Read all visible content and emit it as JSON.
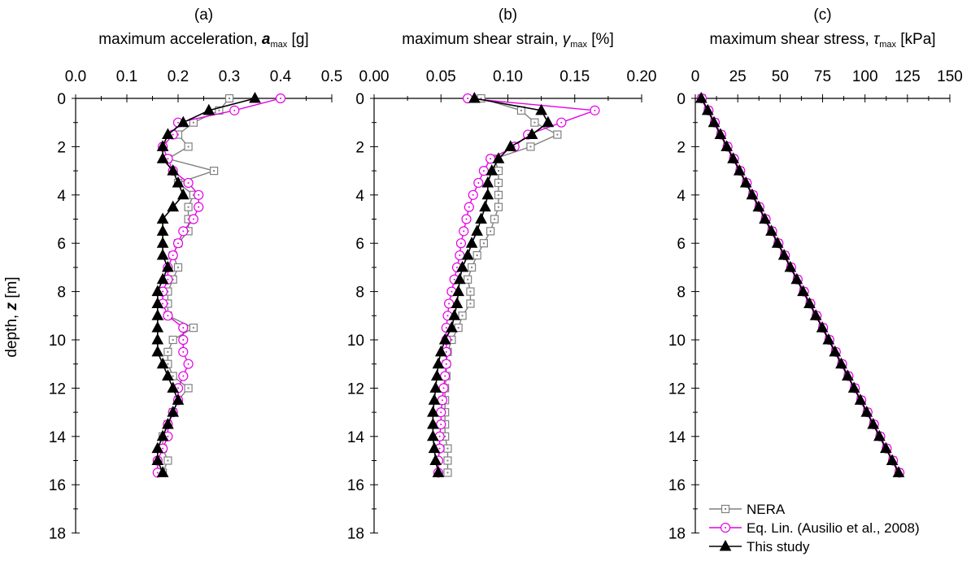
{
  "colors": {
    "nera": "#808080",
    "eqlin": "#e600e6",
    "study": "#000000"
  },
  "shared": {
    "ylabel_prefix": "depth, ",
    "ylabel_var": "z",
    "ylabel_unit": " [m]",
    "ylim": [
      0,
      18
    ],
    "yticks": [
      0,
      2,
      4,
      6,
      8,
      10,
      12,
      14,
      16,
      18
    ],
    "y_invert": true
  },
  "legend": {
    "placement": "bottom-right of panel (c)",
    "items": [
      {
        "key": "nera",
        "label": "NERA",
        "marker": "square-open"
      },
      {
        "key": "eqlin",
        "label": "Eq. Lin. (Ausilio et al., 2008)",
        "marker": "circle-open"
      },
      {
        "key": "study",
        "label": "This study",
        "marker": "triangle-filled"
      }
    ]
  },
  "chart_data": [
    {
      "type": "line",
      "panel_label": "(a)",
      "title_prefix": "maximum acceleration, ",
      "title_var": "a",
      "title_sub": "max",
      "title_unit": " [g]",
      "var_style": "bold-italic",
      "xlim": [
        0,
        0.5
      ],
      "xticks": [
        "0.0",
        "0.1",
        "0.2",
        "0.3",
        "0.4",
        "0.5"
      ],
      "xtick_values": [
        0,
        0.1,
        0.2,
        0.3,
        0.4,
        0.5
      ],
      "series": [
        {
          "key": "nera",
          "depth": [
            0,
            0.5,
            1,
            1.5,
            2,
            2.5,
            3,
            3.5,
            4,
            4.5,
            5,
            5.5,
            6,
            6.5,
            7,
            7.5,
            8,
            8.5,
            9,
            9.5,
            10,
            10.5,
            11,
            11.5,
            12,
            12.5,
            13,
            13.5,
            14,
            14.5,
            15,
            15.5
          ],
          "values": [
            0.3,
            0.28,
            0.23,
            0.2,
            0.22,
            0.18,
            0.27,
            0.2,
            0.23,
            0.22,
            0.22,
            0.22,
            0.2,
            0.19,
            0.2,
            0.19,
            0.18,
            0.18,
            0.18,
            0.23,
            0.19,
            0.18,
            0.18,
            0.19,
            0.22,
            0.2,
            0.19,
            0.18,
            0.17,
            0.17,
            0.18,
            0.17
          ]
        },
        {
          "key": "eqlin",
          "depth": [
            0,
            0.5,
            1,
            1.5,
            2,
            2.5,
            3,
            3.5,
            4,
            4.5,
            5,
            5.5,
            6,
            6.5,
            7,
            7.5,
            8,
            8.5,
            9,
            9.5,
            10,
            10.5,
            11,
            11.5,
            12,
            12.5,
            13,
            13.5,
            14,
            14.5,
            15,
            15.5
          ],
          "values": [
            0.4,
            0.31,
            0.2,
            0.19,
            0.17,
            0.18,
            0.19,
            0.22,
            0.24,
            0.24,
            0.23,
            0.21,
            0.2,
            0.19,
            0.18,
            0.18,
            0.17,
            0.17,
            0.18,
            0.21,
            0.21,
            0.21,
            0.22,
            0.21,
            0.2,
            0.2,
            0.19,
            0.18,
            0.18,
            0.17,
            0.16,
            0.16
          ]
        },
        {
          "key": "study",
          "depth": [
            0,
            0.5,
            1,
            1.5,
            2,
            2.5,
            3,
            3.5,
            4,
            4.5,
            5,
            5.5,
            6,
            6.5,
            7,
            7.5,
            8,
            8.5,
            9,
            9.5,
            10,
            10.5,
            11,
            11.5,
            12,
            12.5,
            13,
            13.5,
            14,
            14.5,
            15,
            15.5
          ],
          "values": [
            0.35,
            0.26,
            0.21,
            0.18,
            0.17,
            0.17,
            0.19,
            0.2,
            0.21,
            0.19,
            0.17,
            0.17,
            0.17,
            0.17,
            0.18,
            0.17,
            0.16,
            0.16,
            0.16,
            0.16,
            0.16,
            0.16,
            0.17,
            0.18,
            0.19,
            0.2,
            0.19,
            0.18,
            0.17,
            0.16,
            0.16,
            0.17
          ]
        }
      ]
    },
    {
      "type": "line",
      "panel_label": "(b)",
      "title_prefix": "maximum shear strain, ",
      "title_var": "γ",
      "title_sub": "max",
      "title_unit": " [%]",
      "var_style": "italic",
      "xlim": [
        0,
        0.2
      ],
      "xticks": [
        "0.00",
        "0.05",
        "0.10",
        "0.15",
        "0.20"
      ],
      "xtick_values": [
        0,
        0.05,
        0.1,
        0.15,
        0.2
      ],
      "series": [
        {
          "key": "nera",
          "depth": [
            0,
            0.5,
            1,
            1.5,
            2,
            2.5,
            3,
            3.5,
            4,
            4.5,
            5,
            5.5,
            6,
            6.5,
            7,
            7.5,
            8,
            8.5,
            9,
            9.5,
            10,
            10.5,
            11,
            11.5,
            12,
            12.5,
            13,
            13.5,
            14,
            14.5,
            15,
            15.5
          ],
          "values": [
            0.08,
            0.11,
            0.12,
            0.137,
            0.117,
            0.09,
            0.093,
            0.093,
            0.093,
            0.093,
            0.09,
            0.087,
            0.082,
            0.077,
            0.073,
            0.07,
            0.072,
            0.072,
            0.066,
            0.063,
            0.058,
            0.055,
            0.054,
            0.054,
            0.053,
            0.053,
            0.053,
            0.053,
            0.053,
            0.055,
            0.055,
            0.055
          ]
        },
        {
          "key": "eqlin",
          "depth": [
            0,
            0.5,
            1,
            1.5,
            2,
            2.5,
            3,
            3.5,
            4,
            4.5,
            5,
            5.5,
            6,
            6.5,
            7,
            7.5,
            8,
            8.5,
            9,
            9.5,
            10,
            10.5,
            11,
            11.5,
            12,
            12.5,
            13,
            13.5,
            14,
            14.5,
            15,
            15.5
          ],
          "values": [
            0.07,
            0.165,
            0.14,
            0.115,
            0.105,
            0.087,
            0.082,
            0.078,
            0.074,
            0.071,
            0.069,
            0.067,
            0.065,
            0.064,
            0.062,
            0.06,
            0.058,
            0.056,
            0.055,
            0.054,
            0.054,
            0.054,
            0.054,
            0.053,
            0.052,
            0.051,
            0.05,
            0.05,
            0.049,
            0.049,
            0.048,
            0.048
          ]
        },
        {
          "key": "study",
          "depth": [
            0,
            0.5,
            1,
            1.5,
            2,
            2.5,
            3,
            3.5,
            4,
            4.5,
            5,
            5.5,
            6,
            6.5,
            7,
            7.5,
            8,
            8.5,
            9,
            9.5,
            10,
            10.5,
            11,
            11.5,
            12,
            12.5,
            13,
            13.5,
            14,
            14.5,
            15,
            15.5
          ],
          "values": [
            0.075,
            0.125,
            0.13,
            0.118,
            0.102,
            0.093,
            0.088,
            0.085,
            0.085,
            0.083,
            0.08,
            0.077,
            0.073,
            0.07,
            0.066,
            0.064,
            0.063,
            0.062,
            0.06,
            0.058,
            0.053,
            0.05,
            0.048,
            0.047,
            0.046,
            0.045,
            0.044,
            0.044,
            0.044,
            0.045,
            0.046,
            0.048
          ]
        }
      ]
    },
    {
      "type": "line",
      "panel_label": "(c)",
      "title_prefix": "maximum shear stress, ",
      "title_var": "τ",
      "title_sub": "max",
      "title_unit": " [kPa]",
      "var_style": "italic",
      "xlim": [
        0,
        150
      ],
      "xticks": [
        "0",
        "25",
        "50",
        "75",
        "100",
        "125",
        "150"
      ],
      "xtick_values": [
        0,
        25,
        50,
        75,
        100,
        125,
        150
      ],
      "series": [
        {
          "key": "nera",
          "depth": [
            0,
            0.5,
            1,
            1.5,
            2,
            2.5,
            3,
            3.5,
            4,
            4.5,
            5,
            5.5,
            6,
            6.5,
            7,
            7.5,
            8,
            8.5,
            9,
            9.5,
            10,
            10.5,
            11,
            11.5,
            12,
            12.5,
            13,
            13.5,
            14,
            14.5,
            15,
            15.5
          ],
          "values": [
            3.8,
            7.5,
            11.3,
            15.0,
            18.8,
            22.5,
            26.3,
            30.0,
            33.8,
            37.5,
            41.3,
            45.0,
            48.8,
            52.5,
            56.3,
            60.0,
            63.8,
            67.5,
            71.3,
            75.0,
            78.8,
            82.5,
            86.3,
            90.0,
            93.8,
            97.5,
            101.3,
            105.0,
            108.8,
            112.5,
            116.3,
            120.0
          ]
        },
        {
          "key": "eqlin",
          "depth": [
            0,
            0.5,
            1,
            1.5,
            2,
            2.5,
            3,
            3.5,
            4,
            4.5,
            5,
            5.5,
            6,
            6.5,
            7,
            7.5,
            8,
            8.5,
            9,
            9.5,
            10,
            10.5,
            11,
            11.5,
            12,
            12.5,
            13,
            13.5,
            14,
            14.5,
            15,
            15.5
          ],
          "values": [
            3.8,
            7.8,
            11.5,
            15.3,
            19.0,
            22.8,
            26.5,
            30.3,
            34.0,
            37.8,
            41.5,
            45.3,
            49.0,
            52.8,
            56.5,
            60.3,
            64.0,
            67.8,
            71.5,
            75.3,
            79.0,
            82.8,
            86.5,
            90.3,
            94.0,
            97.8,
            101.5,
            105.3,
            109.0,
            112.8,
            116.5,
            120.3
          ]
        },
        {
          "key": "study",
          "depth": [
            0,
            0.5,
            1,
            1.5,
            2,
            2.5,
            3,
            3.5,
            4,
            4.5,
            5,
            5.5,
            6,
            6.5,
            7,
            7.5,
            8,
            8.5,
            9,
            9.5,
            10,
            10.5,
            11,
            11.5,
            12,
            12.5,
            13,
            13.5,
            14,
            14.5,
            15,
            15.5
          ],
          "values": [
            3.5,
            7.3,
            11.0,
            14.8,
            18.5,
            22.3,
            26.0,
            29.8,
            33.5,
            37.3,
            41.0,
            44.8,
            48.5,
            52.3,
            56.0,
            59.8,
            63.5,
            67.3,
            71.0,
            74.8,
            78.5,
            82.3,
            86.0,
            89.8,
            93.5,
            97.3,
            101.0,
            104.8,
            108.5,
            112.3,
            116.0,
            119.8
          ]
        }
      ]
    }
  ]
}
